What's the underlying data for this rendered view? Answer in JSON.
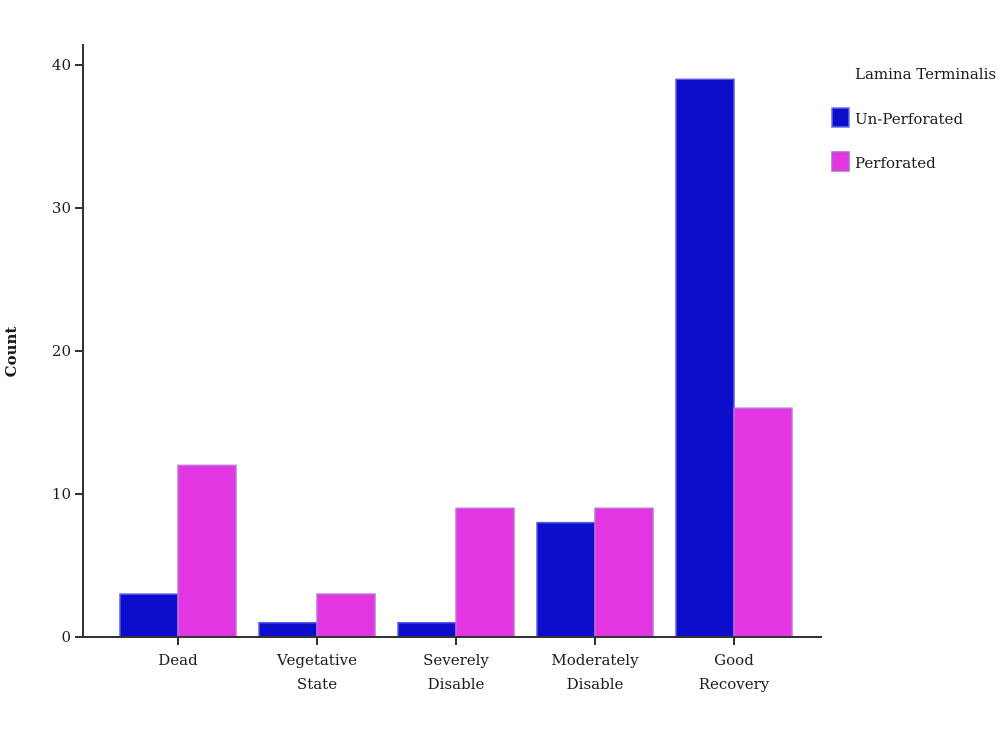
{
  "chart_data": {
    "type": "bar",
    "categories": [
      [
        "Dead"
      ],
      [
        "Vegetative",
        "State"
      ],
      [
        "Severely",
        "Disable"
      ],
      [
        "Moderately",
        "Disable"
      ],
      [
        "Good",
        "Recovery"
      ]
    ],
    "series": [
      {
        "name": "Un-Perforated",
        "color": "#0d0dcc",
        "values": [
          3,
          1,
          1,
          8,
          39
        ]
      },
      {
        "name": "Perforated",
        "color": "#e236e2",
        "values": [
          12,
          3,
          9,
          9,
          16
        ]
      }
    ],
    "xlabel": "",
    "ylabel": "Count",
    "ylim": [
      0,
      40
    ],
    "yticks": [
      0,
      10,
      20,
      30,
      40
    ],
    "legend_title": "Lamina Terminalis",
    "legend_position": "top-right",
    "grid": false
  }
}
